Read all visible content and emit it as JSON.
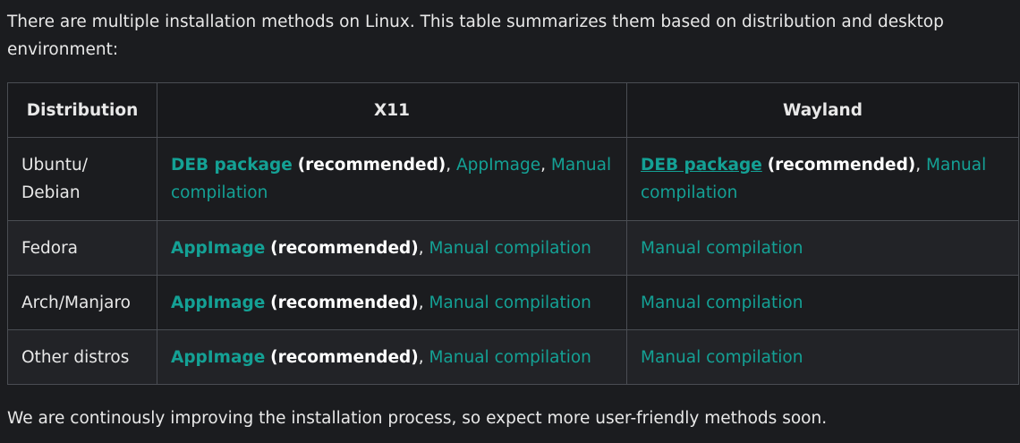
{
  "intro": "There are multiple installation methods on Linux. This table summarizes them based on distribution and desktop environment:",
  "outro": "We are continously improving the installation process, so expect more user-friendly methods soon.",
  "table": {
    "headers": [
      "Distribution",
      "X11",
      "Wayland"
    ],
    "recommended": "(recommended)",
    "sep": ", ",
    "rows": [
      {
        "distro": "Ubuntu/ Debian",
        "x11_primary": "DEB package",
        "x11_others": [
          "AppImage",
          "Manual compilation"
        ],
        "wayland_primary": "DEB package",
        "wayland_others": [
          "Manual compilation"
        ]
      },
      {
        "distro": "Fedora",
        "x11_primary": "AppImage",
        "x11_others": [
          "Manual compilation"
        ],
        "wayland_others": [
          "Manual compilation"
        ]
      },
      {
        "distro": "Arch/Manjaro",
        "x11_primary": "AppImage",
        "x11_others": [
          "Manual compilation"
        ],
        "wayland_others": [
          "Manual compilation"
        ]
      },
      {
        "distro": "Other distros",
        "x11_primary": "AppImage",
        "x11_others": [
          "Manual compilation"
        ],
        "wayland_others": [
          "Manual compilation"
        ]
      }
    ]
  },
  "colors": {
    "link": "#14a195",
    "background": "#1b1c1f"
  }
}
